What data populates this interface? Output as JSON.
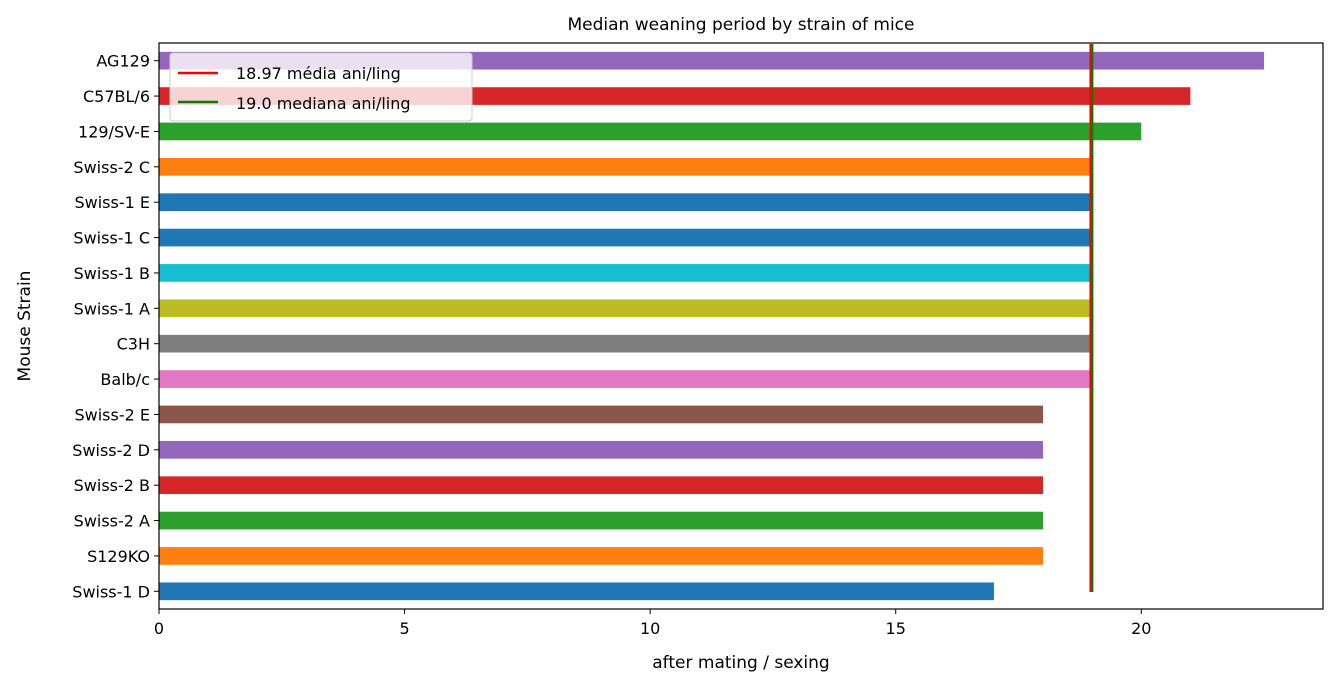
{
  "chart_data": {
    "type": "bar",
    "orientation": "horizontal",
    "title": "Median weaning period by strain of mice",
    "xlabel": "after mating / sexing",
    "ylabel": "Mouse Strain",
    "xlim": [
      0,
      23.7
    ],
    "xticks": [
      0,
      5,
      10,
      15,
      20
    ],
    "grid": false,
    "legend_position": "top-left",
    "categories": [
      "AG129",
      "C57BL/6",
      "129/SV-E",
      "Swiss-2 C",
      "Swiss-1 E",
      "Swiss-1 C",
      "Swiss-1 B",
      "Swiss-1 A",
      "C3H",
      "Balb/c",
      "Swiss-2 E",
      "Swiss-2 D",
      "Swiss-2 B",
      "Swiss-2 A",
      "S129KO",
      "Swiss-1 D"
    ],
    "values": [
      22.5,
      21,
      20,
      19,
      19,
      19,
      19,
      19,
      19,
      19,
      18,
      18,
      18,
      18,
      18,
      17
    ],
    "bar_colors": [
      "#9467bd",
      "#d62728",
      "#2ca02c",
      "#ff7f0e",
      "#1f77b4",
      "#1f77b4",
      "#17becf",
      "#bcbd22",
      "#7f7f7f",
      "#e377c2",
      "#8c564b",
      "#9467bd",
      "#d62728",
      "#2ca02c",
      "#ff7f0e",
      "#1f77b4"
    ],
    "reference_lines": [
      {
        "label": "18.97 média ani/ling",
        "value": 18.97,
        "color": "#ff0000"
      },
      {
        "label": "19.0 mediana ani/ling",
        "value": 19.0,
        "color": "#008000"
      }
    ]
  }
}
